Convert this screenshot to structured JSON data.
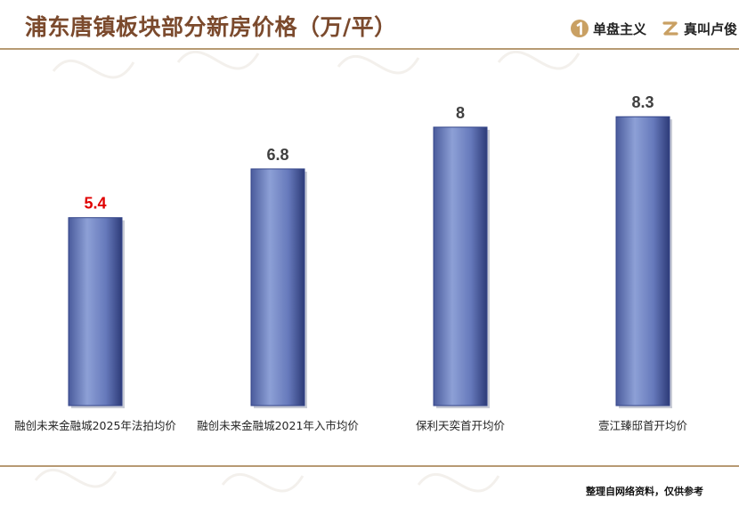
{
  "header": {
    "title": "浦东唐镇板块部分新房价格（万/平）",
    "brand_1": {
      "name": "单盘主义",
      "icon": "numeral-1-badge-icon"
    },
    "brand_2": {
      "name": "真叫卢俊",
      "icon": "z-logo-icon"
    }
  },
  "footer": {
    "note": "整理自网络资料，仅供参考"
  },
  "colors": {
    "title": "#7b4a2d",
    "rule": "#b79a73",
    "bar": "#6d82c0",
    "bar_dark": "#34458a",
    "value_label": "#404040",
    "highlight_value_label": "#e00000",
    "brand_icon": "#c9a063"
  },
  "chart_data": {
    "type": "bar",
    "categories": [
      "融创未来金融城2025年法拍均价",
      "融创未来金融城2021年入市均价",
      "保利天奕首开均价",
      "壹江臻邸首开均价"
    ],
    "values": [
      5.4,
      6.8,
      8,
      8.3
    ],
    "value_labels": [
      "5.4",
      "6.8",
      "8",
      "8.3"
    ],
    "highlight_index": 0,
    "ylim": [
      0,
      9.2
    ],
    "grid": false,
    "legend": false,
    "title": "浦东唐镇板块部分新房价格（万/平）"
  }
}
